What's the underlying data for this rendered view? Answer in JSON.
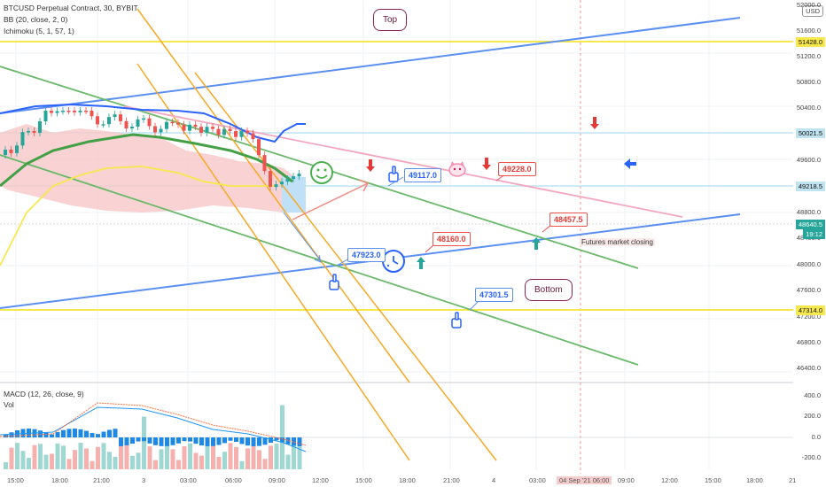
{
  "header": {
    "symbol_line": "BTCUSD Perpetual Contract, 30, BYBIT",
    "bb_line": "BB (20, close, 2, 0)",
    "ichimoku_line": "Ichimoku (5, 1, 57, 1)"
  },
  "macd_panel": {
    "macd_line": "MACD (12, 26, close, 9)",
    "vol_line": "Vol",
    "axis_labels": [
      "400.0",
      "200.0",
      "0.0",
      "-200.0"
    ]
  },
  "price_axis": {
    "currency": "USD",
    "labels": [
      "52000.0",
      "51600.0",
      "51200.0",
      "50800.0",
      "50400.0",
      "49600.0",
      "48800.0",
      "48400.0",
      "48000.0",
      "47600.0",
      "47200.0",
      "46800.0",
      "46400.0"
    ],
    "tags": {
      "top_line": "51428.0",
      "level_50021": "50021.5",
      "level_49218": "49218.5",
      "current_price": "48640.5",
      "countdown": "19:12",
      "bottom_line": "47314.0"
    }
  },
  "time_axis": {
    "labels": [
      "15:00",
      "18:00",
      "21:00",
      "3",
      "03:00",
      "06:00",
      "09:00",
      "12:00",
      "15:00",
      "18:00",
      "21:00",
      "4",
      "03:00",
      "06:00",
      "09:00",
      "12:00",
      "15:00",
      "18:00",
      "21"
    ],
    "crosshair_label": "04 Sep '21  06:00"
  },
  "callouts": {
    "c49117": "49117.0",
    "c49228": "49228.0",
    "c48457": "48457.5",
    "c48160": "48160.0",
    "c47923": "47923.0",
    "c47301": "47301.5"
  },
  "bubbles": {
    "top": "Top",
    "bottom": "Bottom"
  },
  "note": "Futures market closing",
  "colors": {
    "up": "#26a69a",
    "down": "#ef5350",
    "blue_line": "#5b8ff0",
    "green_line": "#6bb96b",
    "orange_line": "#f7a928",
    "yellow_line": "#f7e84d",
    "pink_line": "#f3a6c0",
    "macd_blue": "#2196f3"
  }
}
